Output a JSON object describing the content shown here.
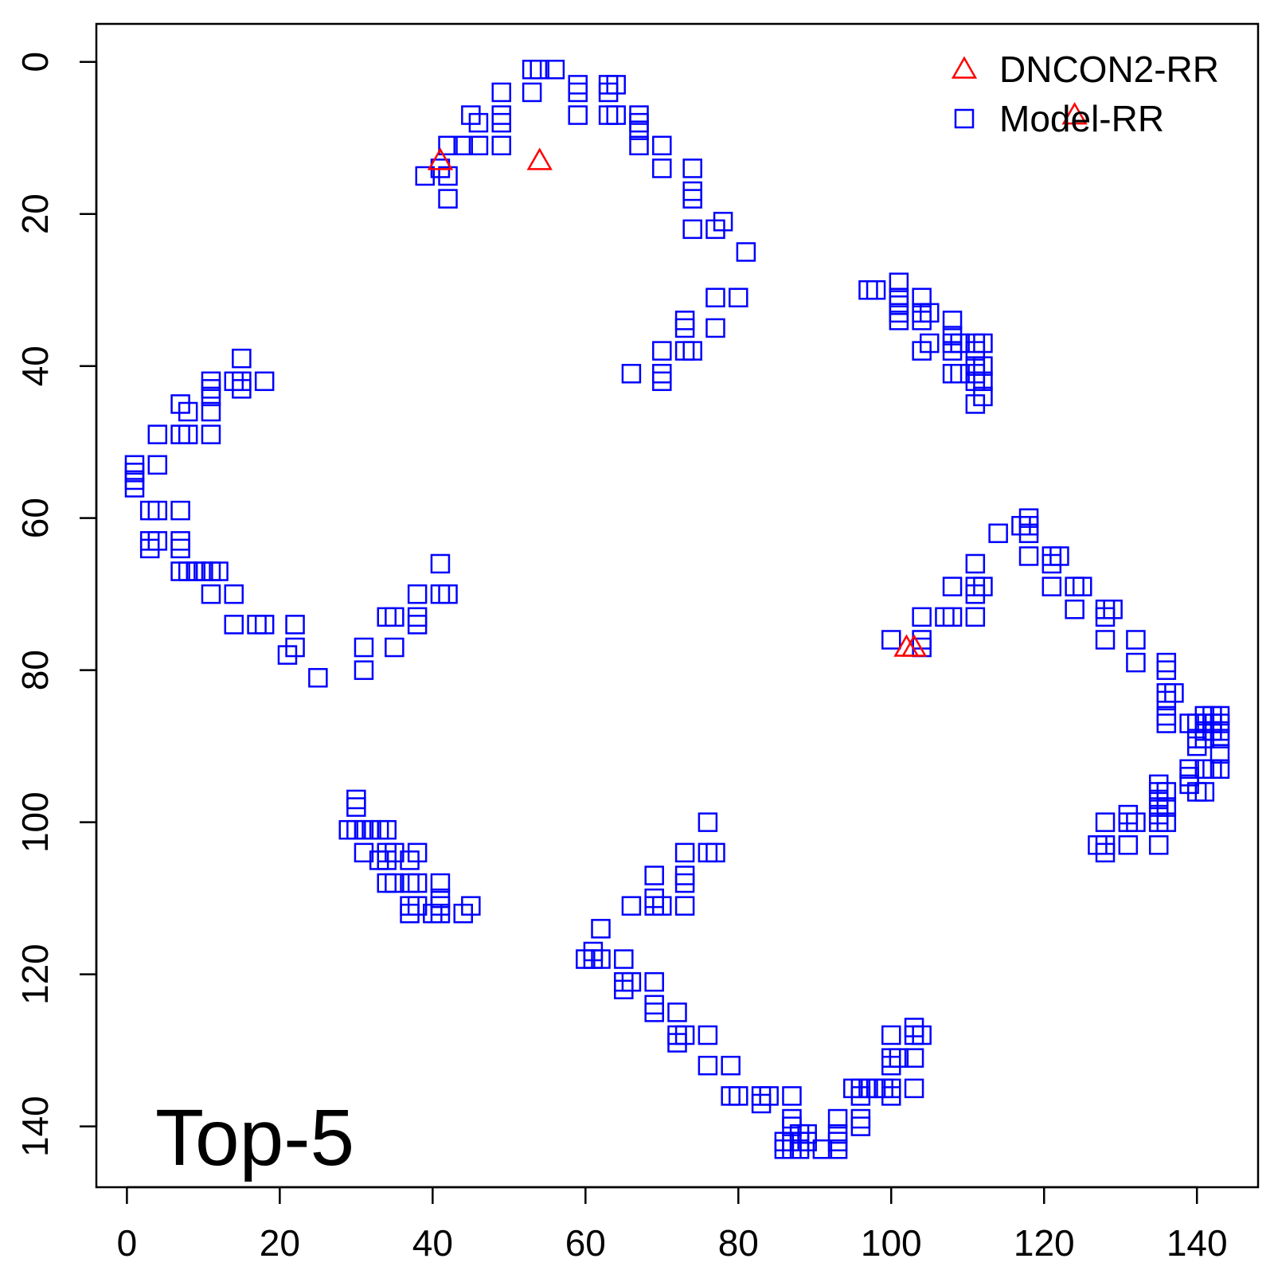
{
  "chart_data": {
    "type": "scatter",
    "title": "",
    "xlabel": "",
    "ylabel": "",
    "xlim": [
      -4,
      148
    ],
    "ylim": [
      -5,
      148
    ],
    "y_axis_reversed": true,
    "xticks": [
      0,
      20,
      40,
      60,
      80,
      100,
      120,
      140
    ],
    "yticks": [
      0,
      20,
      40,
      60,
      80,
      100,
      120,
      140
    ],
    "grid": false,
    "legend_position": "top-right",
    "annotation": "Top-5",
    "series": [
      {
        "name": "DNCON2-RR",
        "marker": "triangle",
        "color": "#ff0000",
        "points": [
          [
            41,
            13
          ],
          [
            54,
            13
          ],
          [
            102,
            77
          ],
          [
            103,
            77
          ],
          [
            124,
            7
          ]
        ]
      },
      {
        "name": "Model-RR",
        "marker": "square",
        "color": "#0000ff",
        "points": [
          [
            53,
            1
          ],
          [
            54,
            1
          ],
          [
            56,
            1
          ],
          [
            53,
            4
          ],
          [
            59,
            3
          ],
          [
            59,
            4
          ],
          [
            63,
            3
          ],
          [
            64,
            3
          ],
          [
            63,
            4
          ],
          [
            59,
            7
          ],
          [
            63,
            7
          ],
          [
            64,
            7
          ],
          [
            67,
            7
          ],
          [
            67,
            8
          ],
          [
            67,
            9
          ],
          [
            67,
            11
          ],
          [
            70,
            11
          ],
          [
            70,
            14
          ],
          [
            49,
            4
          ],
          [
            49,
            7
          ],
          [
            49,
            8
          ],
          [
            49,
            11
          ],
          [
            45,
            7
          ],
          [
            46,
            8
          ],
          [
            46,
            11
          ],
          [
            44,
            11
          ],
          [
            42,
            11
          ],
          [
            41,
            14
          ],
          [
            42,
            15
          ],
          [
            39,
            15
          ],
          [
            42,
            18
          ],
          [
            74,
            14
          ],
          [
            74,
            17
          ],
          [
            74,
            18
          ],
          [
            74,
            22
          ],
          [
            77,
            22
          ],
          [
            78,
            21
          ],
          [
            81,
            25
          ],
          [
            77,
            31
          ],
          [
            80,
            31
          ],
          [
            73,
            34
          ],
          [
            73,
            35
          ],
          [
            73,
            38
          ],
          [
            74,
            38
          ],
          [
            77,
            35
          ],
          [
            70,
            38
          ],
          [
            70,
            41
          ],
          [
            70,
            42
          ],
          [
            66,
            41
          ],
          [
            97,
            30
          ],
          [
            98,
            30
          ],
          [
            101,
            29
          ],
          [
            101,
            31
          ],
          [
            101,
            32
          ],
          [
            101,
            33
          ],
          [
            101,
            34
          ],
          [
            104,
            31
          ],
          [
            104,
            33
          ],
          [
            104,
            34
          ],
          [
            105,
            33
          ],
          [
            104,
            38
          ],
          [
            105,
            37
          ],
          [
            108,
            34
          ],
          [
            108,
            36
          ],
          [
            108,
            37
          ],
          [
            108,
            38
          ],
          [
            108,
            41
          ],
          [
            109,
            37
          ],
          [
            109,
            41
          ],
          [
            111,
            37
          ],
          [
            111,
            38
          ],
          [
            111,
            40
          ],
          [
            111,
            41
          ],
          [
            111,
            42
          ],
          [
            112,
            37
          ],
          [
            112,
            40
          ],
          [
            112,
            42
          ],
          [
            112,
            44
          ],
          [
            111,
            45
          ],
          [
            1,
            53
          ],
          [
            1,
            54
          ],
          [
            1,
            55
          ],
          [
            1,
            56
          ],
          [
            4,
            49
          ],
          [
            4,
            53
          ],
          [
            3,
            59
          ],
          [
            4,
            59
          ],
          [
            7,
            45
          ],
          [
            8,
            46
          ],
          [
            7,
            49
          ],
          [
            8,
            49
          ],
          [
            11,
            42
          ],
          [
            11,
            43
          ],
          [
            11,
            44
          ],
          [
            11,
            46
          ],
          [
            11,
            49
          ],
          [
            15,
            39
          ],
          [
            15,
            42
          ],
          [
            15,
            43
          ],
          [
            14,
            42
          ],
          [
            18,
            42
          ],
          [
            7,
            59
          ],
          [
            3,
            63
          ],
          [
            3,
            64
          ],
          [
            4,
            63
          ],
          [
            7,
            63
          ],
          [
            7,
            64
          ],
          [
            7,
            67
          ],
          [
            8,
            67
          ],
          [
            9,
            67
          ],
          [
            10,
            67
          ],
          [
            11,
            67
          ],
          [
            12,
            67
          ],
          [
            11,
            70
          ],
          [
            14,
            70
          ],
          [
            14,
            74
          ],
          [
            17,
            74
          ],
          [
            18,
            74
          ],
          [
            22,
            74
          ],
          [
            21,
            78
          ],
          [
            22,
            77
          ],
          [
            25,
            81
          ],
          [
            31,
            77
          ],
          [
            31,
            80
          ],
          [
            34,
            73
          ],
          [
            35,
            73
          ],
          [
            35,
            77
          ],
          [
            38,
            70
          ],
          [
            38,
            73
          ],
          [
            38,
            74
          ],
          [
            41,
            66
          ],
          [
            41,
            70
          ],
          [
            42,
            70
          ],
          [
            30,
            97
          ],
          [
            30,
            98
          ],
          [
            29,
            101
          ],
          [
            30,
            101
          ],
          [
            31,
            101
          ],
          [
            32,
            101
          ],
          [
            33,
            101
          ],
          [
            34,
            101
          ],
          [
            31,
            104
          ],
          [
            33,
            105
          ],
          [
            34,
            104
          ],
          [
            34,
            105
          ],
          [
            35,
            104
          ],
          [
            34,
            108
          ],
          [
            35,
            108
          ],
          [
            37,
            105
          ],
          [
            37,
            108
          ],
          [
            38,
            104
          ],
          [
            37,
            111
          ],
          [
            37,
            112
          ],
          [
            38,
            108
          ],
          [
            38,
            111
          ],
          [
            40,
            112
          ],
          [
            41,
            108
          ],
          [
            41,
            110
          ],
          [
            41,
            111
          ],
          [
            41,
            112
          ],
          [
            44,
            112
          ],
          [
            45,
            111
          ],
          [
            76,
            100
          ],
          [
            73,
            104
          ],
          [
            76,
            104
          ],
          [
            77,
            104
          ],
          [
            69,
            107
          ],
          [
            73,
            107
          ],
          [
            73,
            108
          ],
          [
            69,
            110
          ],
          [
            69,
            111
          ],
          [
            70,
            111
          ],
          [
            73,
            111
          ],
          [
            66,
            111
          ],
          [
            62,
            114
          ],
          [
            60,
            118
          ],
          [
            61,
            117
          ],
          [
            61,
            118
          ],
          [
            62,
            118
          ],
          [
            65,
            118
          ],
          [
            65,
            121
          ],
          [
            65,
            122
          ],
          [
            66,
            121
          ],
          [
            69,
            121
          ],
          [
            69,
            124
          ],
          [
            69,
            125
          ],
          [
            72,
            125
          ],
          [
            72,
            128
          ],
          [
            72,
            129
          ],
          [
            73,
            128
          ],
          [
            76,
            128
          ],
          [
            76,
            132
          ],
          [
            79,
            132
          ],
          [
            79,
            136
          ],
          [
            80,
            136
          ],
          [
            83,
            136
          ],
          [
            83,
            137
          ],
          [
            84,
            136
          ],
          [
            87,
            136
          ],
          [
            87,
            139
          ],
          [
            87,
            140
          ],
          [
            86,
            142
          ],
          [
            86,
            143
          ],
          [
            87,
            142
          ],
          [
            87,
            143
          ],
          [
            88,
            141
          ],
          [
            88,
            142
          ],
          [
            88,
            143
          ],
          [
            89,
            141
          ],
          [
            89,
            142
          ],
          [
            91,
            143
          ],
          [
            93,
            139
          ],
          [
            93,
            141
          ],
          [
            93,
            142
          ],
          [
            93,
            143
          ],
          [
            95,
            135
          ],
          [
            96,
            135
          ],
          [
            96,
            136
          ],
          [
            96,
            139
          ],
          [
            96,
            140
          ],
          [
            97,
            135
          ],
          [
            98,
            135
          ],
          [
            99,
            135
          ],
          [
            100,
            135
          ],
          [
            100,
            136
          ],
          [
            100,
            131
          ],
          [
            100,
            132
          ],
          [
            101,
            131
          ],
          [
            100,
            128
          ],
          [
            103,
            127
          ],
          [
            103,
            128
          ],
          [
            104,
            128
          ],
          [
            103,
            131
          ],
          [
            103,
            135
          ],
          [
            114,
            62
          ],
          [
            117,
            61
          ],
          [
            118,
            60
          ],
          [
            118,
            61
          ],
          [
            118,
            62
          ],
          [
            118,
            65
          ],
          [
            121,
            65
          ],
          [
            121,
            66
          ],
          [
            122,
            65
          ],
          [
            121,
            69
          ],
          [
            124,
            69
          ],
          [
            125,
            69
          ],
          [
            124,
            72
          ],
          [
            128,
            72
          ],
          [
            129,
            72
          ],
          [
            128,
            73
          ],
          [
            128,
            76
          ],
          [
            132,
            76
          ],
          [
            132,
            79
          ],
          [
            111,
            66
          ],
          [
            111,
            69
          ],
          [
            111,
            70
          ],
          [
            112,
            69
          ],
          [
            111,
            73
          ],
          [
            108,
            69
          ],
          [
            107,
            73
          ],
          [
            108,
            73
          ],
          [
            104,
            73
          ],
          [
            104,
            76
          ],
          [
            104,
            77
          ],
          [
            100,
            76
          ],
          [
            136,
            79
          ],
          [
            136,
            80
          ],
          [
            136,
            83
          ],
          [
            136,
            84
          ],
          [
            136,
            86
          ],
          [
            137,
            83
          ],
          [
            136,
            87
          ],
          [
            139,
            87
          ],
          [
            140,
            87
          ],
          [
            141,
            86
          ],
          [
            141,
            87
          ],
          [
            141,
            88
          ],
          [
            141,
            89
          ],
          [
            142,
            86
          ],
          [
            142,
            87
          ],
          [
            142,
            88
          ],
          [
            143,
            86
          ],
          [
            143,
            87
          ],
          [
            143,
            88
          ],
          [
            143,
            89
          ],
          [
            140,
            89
          ],
          [
            140,
            90
          ],
          [
            143,
            91
          ],
          [
            143,
            93
          ],
          [
            142,
            93
          ],
          [
            141,
            93
          ],
          [
            139,
            93
          ],
          [
            140,
            96
          ],
          [
            141,
            96
          ],
          [
            139,
            94
          ],
          [
            139,
            95
          ],
          [
            135,
            95
          ],
          [
            135,
            96
          ],
          [
            135,
            97
          ],
          [
            136,
            96
          ],
          [
            135,
            98
          ],
          [
            136,
            98
          ],
          [
            135,
            99
          ],
          [
            135,
            100
          ],
          [
            136,
            100
          ],
          [
            135,
            103
          ],
          [
            131,
            99
          ],
          [
            131,
            100
          ],
          [
            132,
            100
          ],
          [
            131,
            103
          ],
          [
            128,
            100
          ],
          [
            127,
            103
          ],
          [
            128,
            103
          ],
          [
            128,
            104
          ]
        ]
      }
    ]
  }
}
